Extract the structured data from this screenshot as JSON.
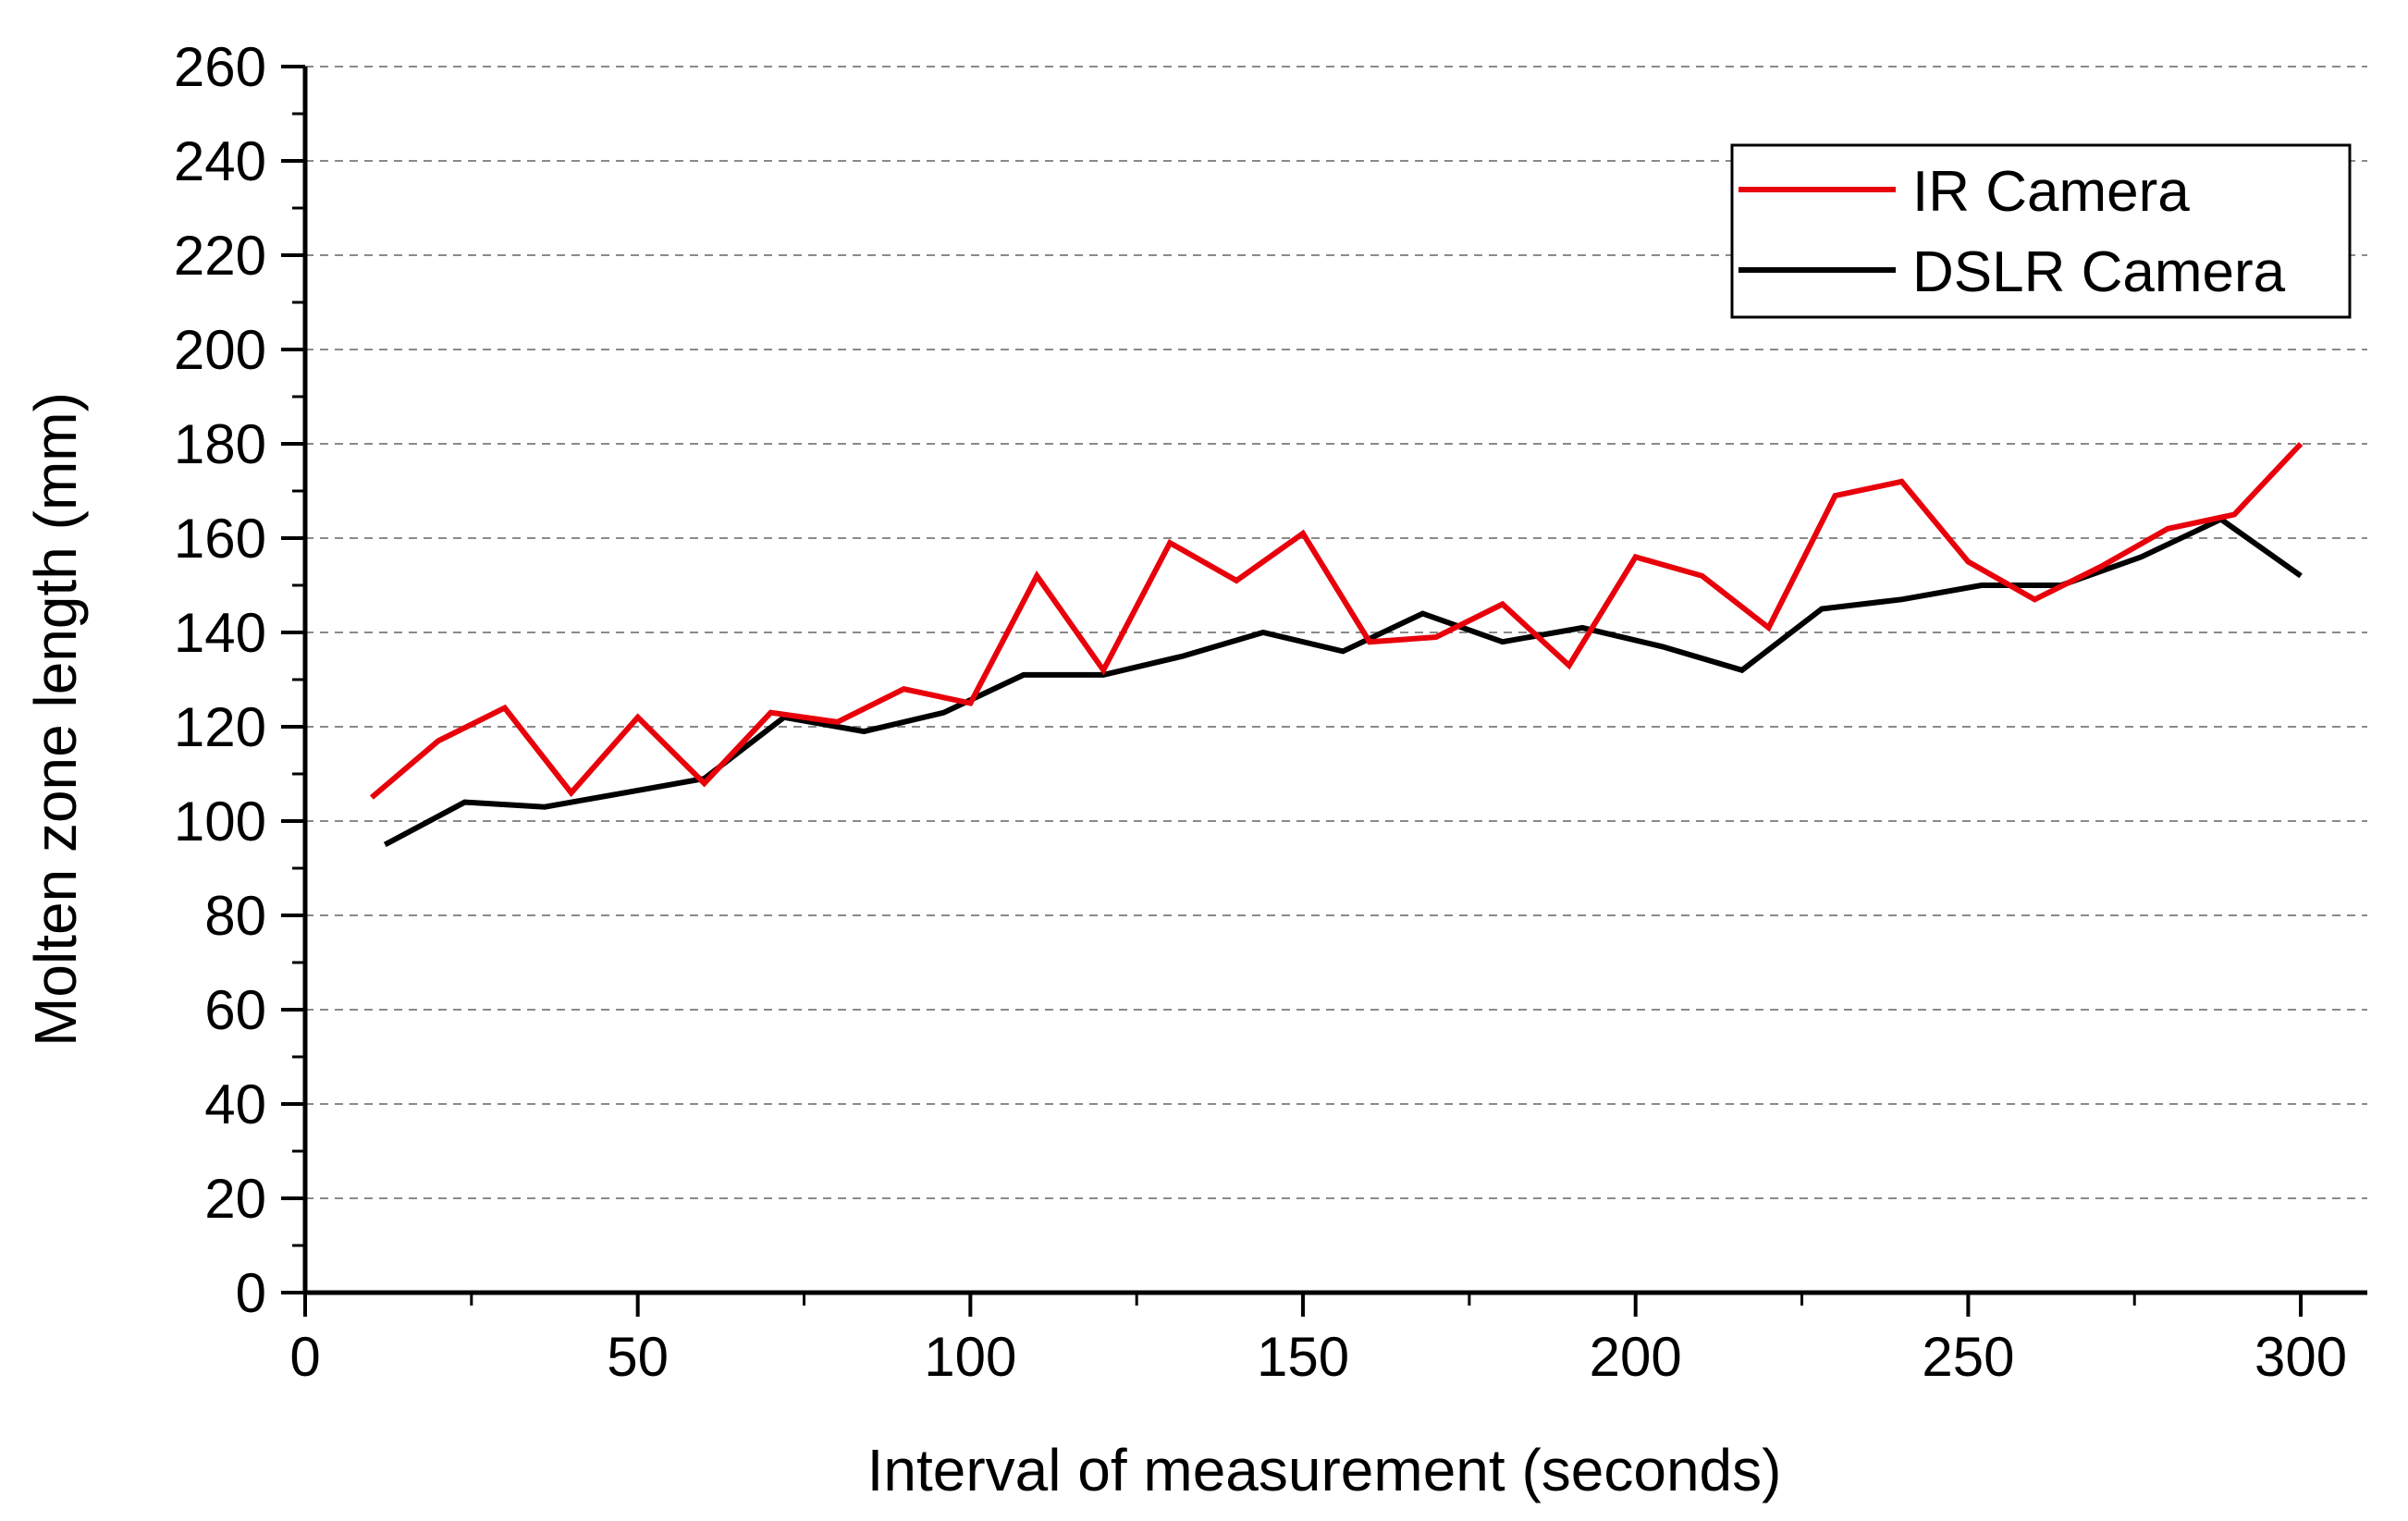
{
  "chart_data": {
    "type": "line",
    "title": "",
    "xlabel": "Interval of measurement (seconds)",
    "ylabel": "Molten zone length (mm)",
    "xlim": [
      0,
      310
    ],
    "ylim": [
      0,
      260
    ],
    "x_ticks": [
      0,
      50,
      100,
      150,
      200,
      250,
      300
    ],
    "y_ticks": [
      0,
      20,
      40,
      60,
      80,
      100,
      120,
      140,
      160,
      180,
      200,
      220,
      240,
      260
    ],
    "grid": "horizontal dashed",
    "legend_position": "top-right",
    "series": [
      {
        "name": "IR Camera",
        "color": "#e8000b",
        "x": [
          10,
          20,
          30,
          40,
          50,
          60,
          70,
          80,
          90,
          100,
          110,
          120,
          130,
          140,
          150,
          160,
          170,
          180,
          190,
          200,
          210,
          220,
          230,
          240,
          250,
          260,
          270,
          280,
          290,
          300
        ],
        "y": [
          105,
          117,
          124,
          106,
          122,
          108,
          123,
          121,
          128,
          125,
          152,
          132,
          159,
          151,
          161,
          138,
          139,
          146,
          133,
          156,
          152,
          141,
          169,
          172,
          155,
          147,
          154,
          162,
          165,
          180
        ]
      },
      {
        "name": "DSLR Camera",
        "color": "#000000",
        "x": [
          12,
          24,
          36,
          48,
          60,
          72,
          84,
          96,
          108,
          120,
          132,
          144,
          156,
          168,
          180,
          192,
          204,
          216,
          228,
          240,
          252,
          264,
          276,
          288,
          300
        ],
        "y": [
          95,
          104,
          103,
          106,
          109,
          122,
          119,
          123,
          131,
          131,
          135,
          140,
          136,
          144,
          138,
          141,
          137,
          132,
          145,
          147,
          150,
          150,
          156,
          164,
          152
        ]
      }
    ]
  }
}
